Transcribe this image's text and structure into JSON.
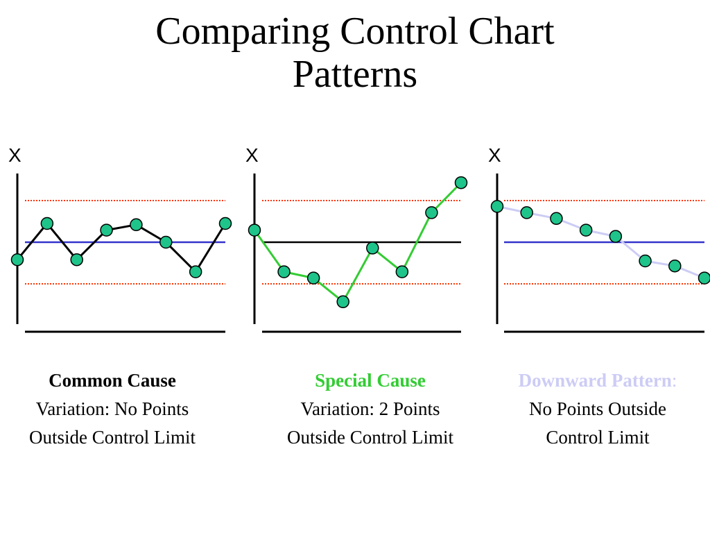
{
  "title": {
    "line1": "Comparing Control Chart",
    "line2": "Patterns"
  },
  "colors": {
    "point_fill": "#1fc48a",
    "control_limit": "#ff3300",
    "center_line_blue": "#3333cc",
    "center_line_black": "#000000",
    "special_line": "#33cc33",
    "downward_line": "#ccccf5",
    "axis": "#000000"
  },
  "chart_data": [
    {
      "type": "line",
      "name": "common-cause",
      "axis_label": "X",
      "center_line": 0,
      "upper_control_limit": 1,
      "lower_control_limit": -1,
      "center_line_color": "#3333cc",
      "line_color": "#000000",
      "points": [
        {
          "x": 0,
          "y": -0.42
        },
        {
          "x": 1,
          "y": 0.45
        },
        {
          "x": 2,
          "y": -0.42
        },
        {
          "x": 3,
          "y": 0.29
        },
        {
          "x": 4,
          "y": 0.42
        },
        {
          "x": 5,
          "y": 0.0
        },
        {
          "x": 6,
          "y": -0.71
        },
        {
          "x": 7,
          "y": 0.45
        }
      ]
    },
    {
      "type": "line",
      "name": "special-cause",
      "axis_label": "X",
      "center_line": 0,
      "upper_control_limit": 1,
      "lower_control_limit": -1,
      "center_line_color": "#000000",
      "line_color": "#33cc33",
      "points": [
        {
          "x": 0,
          "y": 0.29
        },
        {
          "x": 1,
          "y": -0.71
        },
        {
          "x": 2,
          "y": -0.86
        },
        {
          "x": 3,
          "y": -1.43
        },
        {
          "x": 4,
          "y": -0.14
        },
        {
          "x": 5,
          "y": -0.71
        },
        {
          "x": 6,
          "y": 0.71
        },
        {
          "x": 7,
          "y": 1.43
        }
      ]
    },
    {
      "type": "line",
      "name": "downward-pattern",
      "axis_label": "X",
      "center_line": 0,
      "upper_control_limit": 1,
      "lower_control_limit": -1,
      "center_line_color": "#3333cc",
      "line_color": "#ccccf5",
      "points": [
        {
          "x": 0,
          "y": 0.86
        },
        {
          "x": 1,
          "y": 0.71
        },
        {
          "x": 2,
          "y": 0.57
        },
        {
          "x": 3,
          "y": 0.29
        },
        {
          "x": 4,
          "y": 0.14
        },
        {
          "x": 5,
          "y": -0.45
        },
        {
          "x": 6,
          "y": -0.57
        },
        {
          "x": 7,
          "y": -0.86
        }
      ]
    }
  ],
  "captions": {
    "common": {
      "heading": "Common Cause",
      "line2": "Variation: No Points",
      "line3": "Outside Control Limit"
    },
    "special": {
      "heading": "Special Cause",
      "line2": "Variation: 2 Points",
      "line3": "Outside Control Limit"
    },
    "downward": {
      "heading": "Downward Pattern",
      "heading_suffix": ":",
      "line2": "No Points Outside",
      "line3": "Control Limit"
    }
  }
}
